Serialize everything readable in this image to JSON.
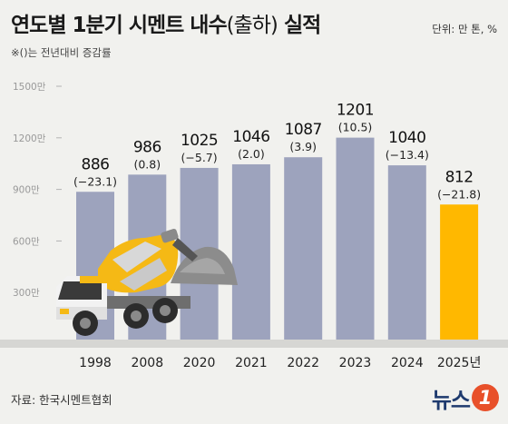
{
  "header": {
    "title_main": "연도별 1분기 시멘트 내수",
    "title_paren": "(출하)",
    "title_tail": "실적",
    "unit": "단위: 만 톤, %",
    "note": "※()는 전년대비 증감률"
  },
  "source": "자료: 한국시멘트협회",
  "logo": {
    "text": "뉴스",
    "badge": "1"
  },
  "colors": {
    "bar": "#9da3bd",
    "highlight": "#ffb800",
    "truck_yellow": "#f5b915",
    "background": "#f1f1ee"
  },
  "chart_data": {
    "type": "bar",
    "categories": [
      "1998",
      "2008",
      "2020",
      "2021",
      "2022",
      "2023",
      "2024",
      "2025년"
    ],
    "values": [
      886,
      986,
      1025,
      1046,
      1087,
      1201,
      1040,
      812
    ],
    "changes": [
      "(−23.1)",
      "(0.8)",
      "(−5.7)",
      "(2.0)",
      "(3.9)",
      "(10.5)",
      "(−13.4)",
      "(−21.8)"
    ],
    "highlight_index": 7,
    "y_ticks": [
      {
        "value": 300,
        "label": "300만"
      },
      {
        "value": 600,
        "label": "600만"
      },
      {
        "value": 900,
        "label": "900만"
      },
      {
        "value": 1200,
        "label": "1200만"
      },
      {
        "value": 1500,
        "label": "1500만"
      }
    ],
    "ylim": [
      0,
      1500
    ],
    "grid": false,
    "title": "연도별 1분기 시멘트 내수(출하) 실적"
  }
}
